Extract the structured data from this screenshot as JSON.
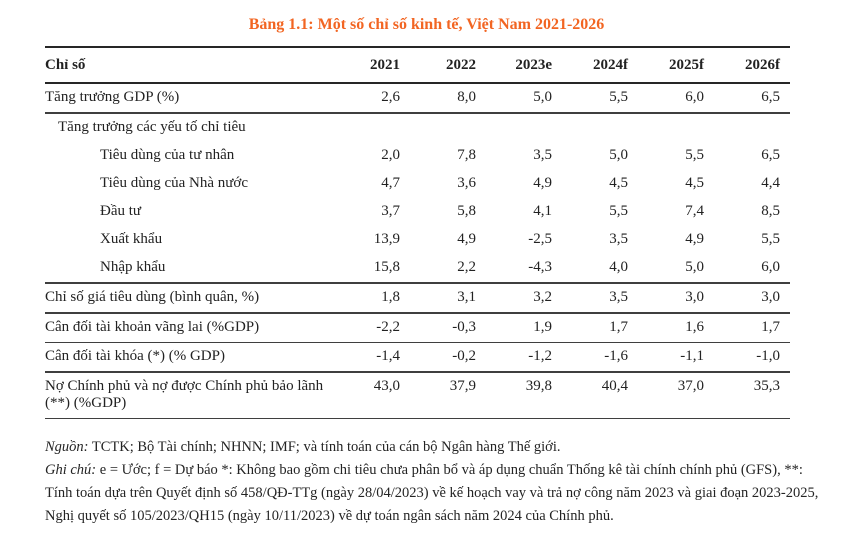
{
  "title": "Bảng 1.1: Một số chỉ số kinh tế, Việt Nam 2021-2026",
  "accent_color": "#F26522",
  "chart_data": {
    "type": "table",
    "title": "Bảng 1.1: Một số chỉ số kinh tế, Việt Nam 2021-2026",
    "columns": [
      "Chỉ số",
      "2021",
      "2022",
      "2023e",
      "2024f",
      "2025f",
      "2026f"
    ],
    "rows": [
      {
        "label": "Tăng trưởng GDP (%)",
        "indent": 0,
        "values": [
          "2,6",
          "8,0",
          "5,0",
          "5,5",
          "6,0",
          "6,5"
        ],
        "rule": "thick"
      },
      {
        "label": "Tăng trưởng các yếu tố chỉ tiêu",
        "indent": 1,
        "values": [
          "",
          "",
          "",
          "",
          "",
          ""
        ],
        "rule": "none"
      },
      {
        "label": "Tiêu dùng của tư nhân",
        "indent": 2,
        "values": [
          "2,0",
          "7,8",
          "3,5",
          "5,0",
          "5,5",
          "6,5"
        ],
        "rule": "none"
      },
      {
        "label": "Tiêu dùng của Nhà nước",
        "indent": 2,
        "values": [
          "4,7",
          "3,6",
          "4,9",
          "4,5",
          "4,5",
          "4,4"
        ],
        "rule": "none"
      },
      {
        "label": "Đầu tư",
        "indent": 2,
        "values": [
          "3,7",
          "5,8",
          "4,1",
          "5,5",
          "7,4",
          "8,5"
        ],
        "rule": "none"
      },
      {
        "label": "Xuất khẩu",
        "indent": 2,
        "values": [
          "13,9",
          "4,9",
          "-2,5",
          "3,5",
          "4,9",
          "5,5"
        ],
        "rule": "none"
      },
      {
        "label": "Nhập khẩu",
        "indent": 2,
        "values": [
          "15,8",
          "2,2",
          "-4,3",
          "4,0",
          "5,0",
          "6,0"
        ],
        "rule": "thick"
      },
      {
        "label": "Chỉ số giá tiêu dùng (bình quân, %)",
        "indent": 0,
        "values": [
          "1,8",
          "3,1",
          "3,2",
          "3,5",
          "3,0",
          "3,0"
        ],
        "rule": "thick"
      },
      {
        "label": "Cân đối tài khoản vãng lai (%GDP)",
        "indent": 0,
        "values": [
          "-2,2",
          "-0,3",
          "1,9",
          "1,7",
          "1,6",
          "1,7"
        ],
        "rule": "thin"
      },
      {
        "label": "Cân đối tài khóa (*) (% GDP)",
        "indent": 0,
        "values": [
          "-1,4",
          "-0,2",
          "-1,2",
          "-1,6",
          "-1,1",
          "-1,0"
        ],
        "rule": "thick"
      },
      {
        "label": "Nợ Chính phủ và nợ được Chính phủ bảo lãnh (**) (%GDP)",
        "indent": 0,
        "values": [
          "43,0",
          "37,9",
          "39,8",
          "40,4",
          "37,0",
          "35,3"
        ],
        "rule": "thin"
      }
    ]
  },
  "notes": {
    "source_label": "Nguồn:",
    "source_text": " TCTK; Bộ Tài chính; NHNN; IMF; và tính toán của cán bộ Ngân hàng Thế giới.",
    "note_label": "Ghi chú:",
    "note_text": " e = Ước; f = Dự báo *: Không bao gồm chi tiêu chưa phân bổ và áp dụng chuẩn Thống kê tài chính chính phủ (GFS), **: Tính toán dựa trên Quyết định số 458/QĐ-TTg (ngày 28/04/2023) về kế hoạch vay và trả nợ công năm 2023 và giai đoạn 2023-2025, Nghị quyết số 105/2023/QH15 (ngày 10/11/2023) về dự toán ngân sách năm 2024 của Chính phủ."
  }
}
